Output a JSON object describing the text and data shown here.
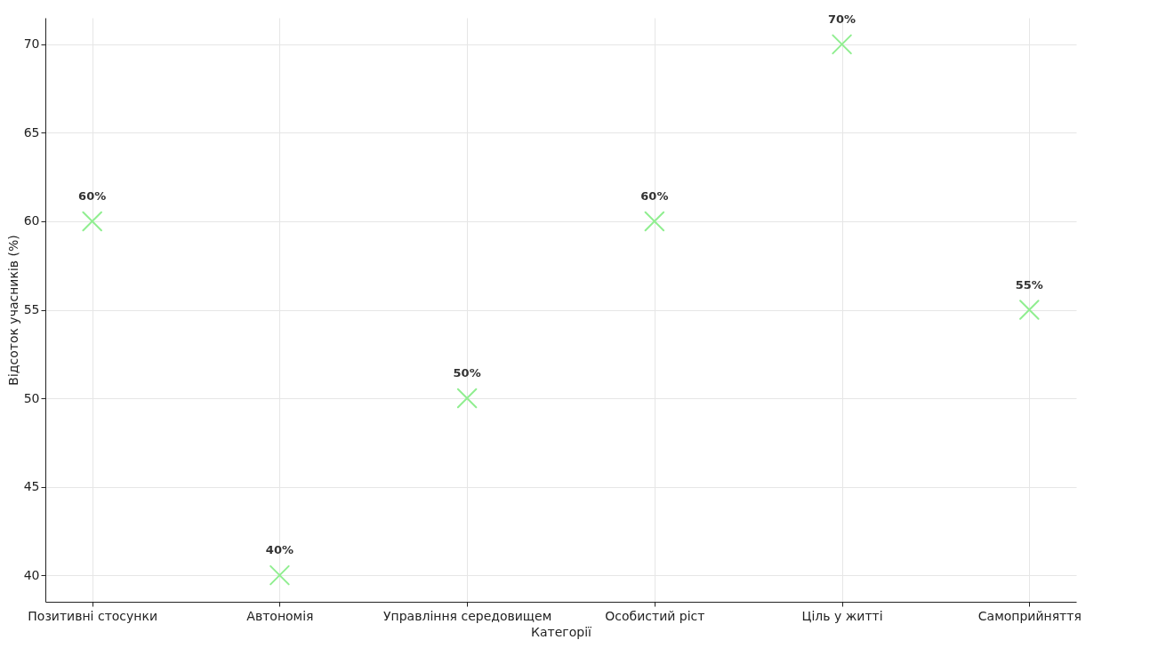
{
  "chart_data": {
    "type": "scatter",
    "xlabel": "Категорії",
    "ylabel": "Відсоток учасників (%)",
    "categories": [
      "Позитивні стосунки",
      "Автономія",
      "Управління середовищем",
      "Особистий ріст",
      "Ціль у житті",
      "Самоприйняття"
    ],
    "values": [
      60,
      40,
      50,
      60,
      70,
      55
    ],
    "value_labels": [
      "60%",
      "40%",
      "50%",
      "60%",
      "70%",
      "55%"
    ],
    "color": "#90ee90",
    "marker": "cross",
    "ylim": [
      38.5,
      71.5
    ],
    "yticks": [
      40,
      45,
      50,
      55,
      60,
      65,
      70
    ],
    "grid": true
  }
}
